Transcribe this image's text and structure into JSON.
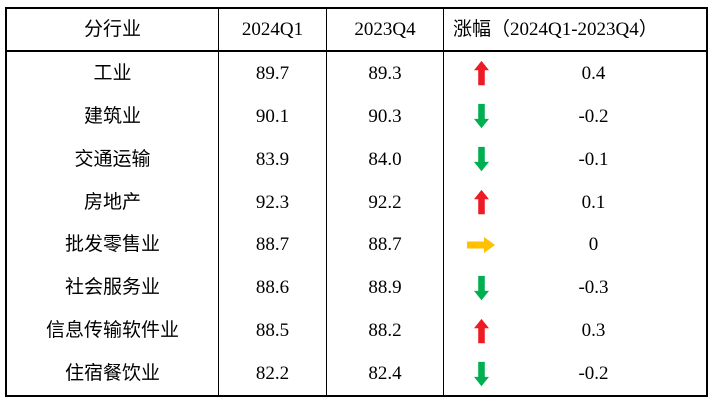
{
  "chart_data": {
    "type": "table",
    "title": "",
    "headers": [
      "分行业",
      "2024Q1",
      "2023Q4",
      "涨幅（2024Q1-2023Q4）"
    ],
    "rows": [
      {
        "industry": "工业",
        "q1_2024": "89.7",
        "q4_2023": "89.3",
        "direction": "up",
        "change": "0.4"
      },
      {
        "industry": "建筑业",
        "q1_2024": "90.1",
        "q4_2023": "90.3",
        "direction": "down",
        "change": "-0.2"
      },
      {
        "industry": "交通运输",
        "q1_2024": "83.9",
        "q4_2023": "84.0",
        "direction": "down",
        "change": "-0.1"
      },
      {
        "industry": "房地产",
        "q1_2024": "92.3",
        "q4_2023": "92.2",
        "direction": "up",
        "change": "0.1"
      },
      {
        "industry": "批发零售业",
        "q1_2024": "88.7",
        "q4_2023": "88.7",
        "direction": "flat",
        "change": "0"
      },
      {
        "industry": "社会服务业",
        "q1_2024": "88.6",
        "q4_2023": "88.9",
        "direction": "down",
        "change": "-0.3"
      },
      {
        "industry": "信息传输软件业",
        "q1_2024": "88.5",
        "q4_2023": "88.2",
        "direction": "up",
        "change": "0.3"
      },
      {
        "industry": "住宿餐饮业",
        "q1_2024": "82.2",
        "q4_2023": "82.4",
        "direction": "down",
        "change": "-0.2"
      }
    ],
    "arrow_colors": {
      "up": "#ed1c24",
      "down": "#00b050",
      "flat": "#ffc000"
    },
    "border_color": "#000000",
    "background": "#ffffff",
    "layout_hints": {
      "grid": "outer-border, header-underline, vertical-separators-only",
      "header_change_align": "left"
    }
  }
}
